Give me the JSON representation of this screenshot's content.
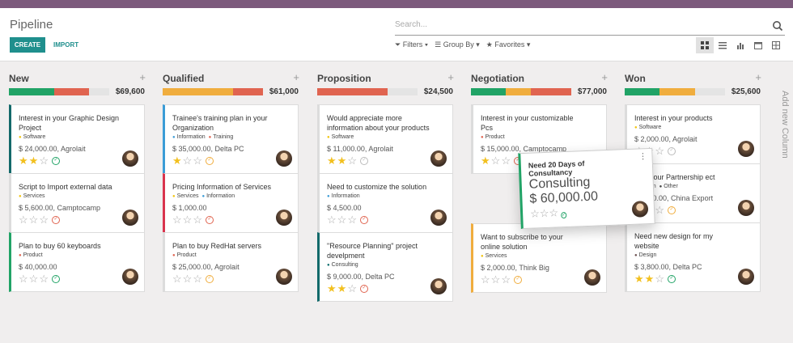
{
  "header": {
    "title": "Pipeline",
    "search_placeholder": "Search...",
    "create_label": "CREATE",
    "import_label": "IMPORT",
    "filters_label": "Filters",
    "groupby_label": "Group By",
    "favorites_label": "Favorites",
    "views": [
      "kanban-icon",
      "list-icon",
      "graph-icon",
      "calendar-icon",
      "table-icon"
    ]
  },
  "columns": [
    {
      "title": "New",
      "amount": "$69,600",
      "bar": [
        {
          "pct": 45,
          "color": "#21a366"
        },
        {
          "pct": 35,
          "color": "#e06450"
        }
      ],
      "cards": [
        {
          "name": "Interest in your Graphic Design Project",
          "tags": [
            {
              "label": "Software",
              "color": "#f1c40f"
            }
          ],
          "amount": "$ 24,000.00, Agrolait",
          "stars": 2,
          "activity": "#21a366",
          "border": "#13696a"
        },
        {
          "name": "Script to Import external data",
          "tags": [
            {
              "label": "Services",
              "color": "#f1c40f"
            }
          ],
          "amount": "$ 5,600.00, Camptocamp",
          "stars": 0,
          "activity": "#e06450",
          "border": "#dcdcdc"
        },
        {
          "name": "Plan to buy 60 keyboards",
          "tags": [
            {
              "label": "Product",
              "color": "#e06450"
            }
          ],
          "amount": "$ 40,000.00",
          "stars": 0,
          "activity": "#21a366",
          "border": "#21a366"
        }
      ]
    },
    {
      "title": "Qualified",
      "amount": "$61,000",
      "bar": [
        {
          "pct": 70,
          "color": "#f0ad3e"
        },
        {
          "pct": 30,
          "color": "#e06450"
        }
      ],
      "cards": [
        {
          "name": "Trainee's training plan in your Organization",
          "tags": [
            {
              "label": "Information",
              "color": "#3b9cd6"
            },
            {
              "label": "Training",
              "color": "#e06450"
            }
          ],
          "amount": "$ 35,000.00, Delta PC",
          "stars": 1,
          "activity": "#f0ad3e",
          "border": "#3b9cd6"
        },
        {
          "name": "Pricing Information of Services",
          "tags": [
            {
              "label": "Services",
              "color": "#f1c40f"
            },
            {
              "label": "Information",
              "color": "#3b9cd6"
            }
          ],
          "amount": "$ 1,000.00",
          "stars": 0,
          "activity": "#e06450",
          "border": "#d9344d"
        },
        {
          "name": "Plan to buy RedHat servers",
          "tags": [
            {
              "label": "Product",
              "color": "#e06450"
            }
          ],
          "amount": "$ 25,000.00, Agrolait",
          "stars": 0,
          "activity": "#f0ad3e",
          "border": "#dcdcdc"
        }
      ]
    },
    {
      "title": "Proposition",
      "amount": "$24,500",
      "bar": [
        {
          "pct": 70,
          "color": "#e06450"
        }
      ],
      "cards": [
        {
          "name": "Would appreciate more information about your products",
          "tags": [
            {
              "label": "Software",
              "color": "#f1c40f"
            }
          ],
          "amount": "$ 11,000.00, Agrolait",
          "stars": 2,
          "activity": "#bbbbbb",
          "border": "#dcdcdc"
        },
        {
          "name": "Need to customize the solution",
          "tags": [
            {
              "label": "Information",
              "color": "#3b9cd6"
            }
          ],
          "amount": "$ 4,500.00",
          "stars": 0,
          "activity": "#e06450",
          "border": "#dcdcdc"
        },
        {
          "name": "\"Resource Planning\" project develpment",
          "tags": [
            {
              "label": "Consulting",
              "color": "#0e6e6e"
            }
          ],
          "amount": "$ 9,000.00, Delta PC",
          "stars": 2,
          "activity": "#e06450",
          "border": "#13696a"
        }
      ]
    },
    {
      "title": "Negotiation",
      "amount": "$77,000",
      "bar": [
        {
          "pct": 35,
          "color": "#21a366"
        },
        {
          "pct": 25,
          "color": "#f0ad3e"
        },
        {
          "pct": 40,
          "color": "#e06450"
        }
      ],
      "cards": [
        {
          "name": "Interest in your customizable Pcs",
          "tags": [
            {
              "label": "Product",
              "color": "#e06450"
            }
          ],
          "amount": "$ 15,000.00, Camptocamp",
          "stars": 1,
          "activity": "#e06450",
          "border": "#dcdcdc"
        },
        {
          "name": "Want to subscribe to your online solution",
          "tags": [
            {
              "label": "Services",
              "color": "#f1c40f"
            }
          ],
          "amount": "$ 2,000.00, Think Big",
          "stars": 0,
          "activity": "#f0ad3e",
          "border": "#f0ad3e"
        }
      ]
    },
    {
      "title": "Won",
      "amount": "$25,600",
      "bar": [
        {
          "pct": 35,
          "color": "#21a366"
        },
        {
          "pct": 35,
          "color": "#f0ad3e"
        }
      ],
      "cards": [
        {
          "name": "Interest in your products",
          "tags": [
            {
              "label": "Software",
              "color": "#f1c40f"
            }
          ],
          "amount": "$ 2,000.00, Agrolait",
          "stars": 0,
          "activity": "#bbbbbb",
          "border": "#dcdcdc"
        },
        {
          "name": "st in your Partnership ect",
          "tags": [
            {
              "label": "mation",
              "color": "#3b9cd6"
            },
            {
              "label": "Other",
              "color": "#444444"
            }
          ],
          "amount": "19,800.00, China Export",
          "stars": 2,
          "activity": "#f0ad3e",
          "border": "#dcdcdc"
        },
        {
          "name": "Need new design for my website",
          "tags": [
            {
              "label": "Design",
              "color": "#6b4f4f"
            }
          ],
          "amount": "$ 3,800.00, Delta PC",
          "stars": 2,
          "activity": "#21a366",
          "border": "#dcdcdc"
        }
      ]
    }
  ],
  "dragging_card": {
    "name": "Need 20 Days of Consultancy",
    "tags": [
      {
        "label": "Consulting",
        "color": "#0e6e6e"
      }
    ],
    "amount": "$ 60,000.00",
    "stars": 0,
    "activity": "#21a366"
  },
  "add_column_label": "Add new Column"
}
